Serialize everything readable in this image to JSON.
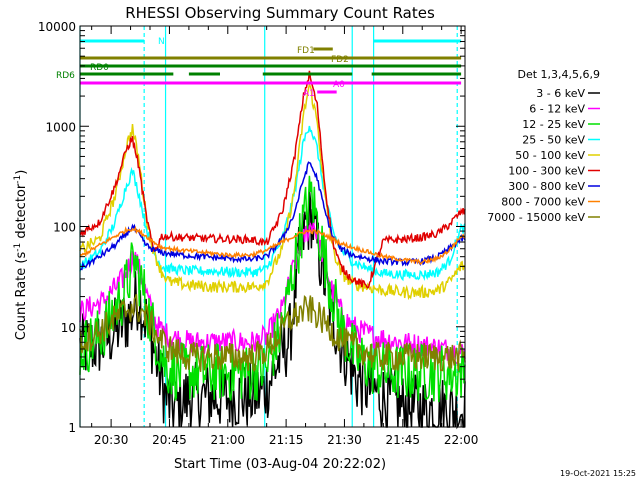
{
  "chart_data": {
    "type": "line",
    "title": "RHESSI Observing Summary Count Rates",
    "xlabel": "Start Time (03-Aug-04 20:22:02)",
    "ylabel_main": "Count Rate (s",
    "ylabel_sup1": "-1",
    "ylabel_mid": " detector",
    "ylabel_sup2": "-1",
    "ylabel_end": ")",
    "footer": "19-Oct-2021 15:25",
    "x_range_min": [
      22,
      121
    ],
    "y_range": [
      1,
      10000
    ],
    "y_scale": "log",
    "x_ticks": [
      {
        "label": "20:30",
        "min": 30
      },
      {
        "label": "20:45",
        "min": 45
      },
      {
        "label": "21:00",
        "min": 60
      },
      {
        "label": "21:15",
        "min": 75
      },
      {
        "label": "21:30",
        "min": 90
      },
      {
        "label": "21:45",
        "min": 105
      },
      {
        "label": "22:00",
        "min": 120
      }
    ],
    "y_ticks": [
      {
        "label": "1",
        "value": 1
      },
      {
        "label": "10",
        "value": 10
      },
      {
        "label": "100",
        "value": 100
      },
      {
        "label": "1000",
        "value": 1000
      },
      {
        "label": "10000",
        "value": 10000
      }
    ],
    "legend_title": "Det 1,3,4,5,6,9",
    "legend_position": "right",
    "series": [
      {
        "name": "3 - 6 keV",
        "color": "#000000",
        "baseline": 2.3,
        "gap": 1.0,
        "points": [
          [
            22,
            6
          ],
          [
            28,
            7
          ],
          [
            35,
            13
          ],
          [
            37,
            21
          ],
          [
            38,
            15
          ],
          [
            40,
            9
          ],
          [
            42,
            4
          ],
          [
            44,
            2
          ],
          [
            46,
            1.5
          ],
          [
            50,
            2
          ],
          [
            56,
            2
          ],
          [
            62,
            2
          ],
          [
            67,
            2
          ],
          [
            70,
            2.5
          ],
          [
            76,
            8
          ],
          [
            78,
            40
          ],
          [
            80,
            100
          ],
          [
            81.5,
            130
          ],
          [
            83,
            65
          ],
          [
            86,
            18
          ],
          [
            89,
            7
          ],
          [
            93,
            3
          ],
          [
            96,
            2.5
          ],
          [
            100,
            2
          ],
          [
            104,
            1.6
          ],
          [
            110,
            1.5
          ],
          [
            116,
            1.5
          ],
          [
            120,
            1.5
          ]
        ],
        "noise": 0.35
      },
      {
        "name": "6 - 12 keV",
        "color": "#ff00ff",
        "baseline": 7.5,
        "gap": 6.5,
        "points": [
          [
            22,
            14
          ],
          [
            28,
            18
          ],
          [
            33,
            30
          ],
          [
            36,
            52
          ],
          [
            38,
            30
          ],
          [
            40,
            16
          ],
          [
            42,
            10
          ],
          [
            45,
            8
          ],
          [
            50,
            7
          ],
          [
            56,
            7
          ],
          [
            62,
            7
          ],
          [
            67,
            7
          ],
          [
            70,
            8
          ],
          [
            74,
            15
          ],
          [
            77,
            40
          ],
          [
            80,
            85
          ],
          [
            82,
            110
          ],
          [
            84,
            60
          ],
          [
            87,
            22
          ],
          [
            90,
            12
          ],
          [
            94,
            9
          ],
          [
            98,
            8
          ],
          [
            104,
            7
          ],
          [
            110,
            6.5
          ],
          [
            116,
            6
          ],
          [
            120,
            5.5
          ]
        ],
        "noise": 0.12
      },
      {
        "name": "12 - 25 keV",
        "color": "#00e000",
        "baseline": 3.5,
        "gap": 2.5,
        "points": [
          [
            22,
            6
          ],
          [
            27,
            8
          ],
          [
            33,
            20
          ],
          [
            36,
            45
          ],
          [
            38,
            25
          ],
          [
            40,
            12
          ],
          [
            42,
            7
          ],
          [
            44,
            4
          ],
          [
            48,
            3.5
          ],
          [
            54,
            3.5
          ],
          [
            60,
            3.5
          ],
          [
            66,
            3.5
          ],
          [
            70,
            3.8
          ],
          [
            74,
            10
          ],
          [
            77,
            40
          ],
          [
            80,
            140
          ],
          [
            81.5,
            210
          ],
          [
            83,
            110
          ],
          [
            86,
            30
          ],
          [
            89,
            10
          ],
          [
            93,
            5
          ],
          [
            97,
            4
          ],
          [
            102,
            3.5
          ],
          [
            110,
            3.5
          ],
          [
            116,
            3.5
          ],
          [
            120,
            3.5
          ]
        ],
        "noise": 0.3
      },
      {
        "name": "25 - 50 keV",
        "color": "#00ffff",
        "baseline": 30,
        "gap": 30,
        "points": [
          [
            22,
            40
          ],
          [
            27,
            55
          ],
          [
            31,
            110
          ],
          [
            34,
            260
          ],
          [
            35.5,
            360
          ],
          [
            37,
            220
          ],
          [
            39,
            100
          ],
          [
            41,
            55
          ],
          [
            43,
            40
          ],
          [
            45,
            38
          ],
          [
            50,
            36
          ],
          [
            56,
            36
          ],
          [
            62,
            35
          ],
          [
            67,
            35
          ],
          [
            70,
            38
          ],
          [
            74,
            75
          ],
          [
            77,
            200
          ],
          [
            79.5,
            700
          ],
          [
            81,
            1050
          ],
          [
            83,
            600
          ],
          [
            85,
            200
          ],
          [
            87,
            90
          ],
          [
            89,
            60
          ],
          [
            92,
            45
          ],
          [
            96,
            38
          ],
          [
            100,
            34
          ],
          [
            106,
            33
          ],
          [
            110,
            33
          ],
          [
            114,
            35
          ],
          [
            117,
            45
          ],
          [
            120,
            95
          ]
        ],
        "noise": 0.05
      },
      {
        "name": "50 - 100 keV",
        "color": "#e0d000",
        "baseline": 20,
        "gap": 18,
        "points": [
          [
            22,
            58
          ],
          [
            27,
            75
          ],
          [
            31,
            200
          ],
          [
            34,
            650
          ],
          [
            35.5,
            950
          ],
          [
            37,
            500
          ],
          [
            39,
            130
          ],
          [
            41,
            55
          ],
          [
            43,
            35
          ],
          [
            45,
            28
          ],
          [
            50,
            26
          ],
          [
            56,
            25
          ],
          [
            62,
            25
          ],
          [
            67,
            25
          ],
          [
            70,
            28
          ],
          [
            74,
            60
          ],
          [
            77,
            210
          ],
          [
            79.5,
            1300
          ],
          [
            81,
            2600
          ],
          [
            83,
            1100
          ],
          [
            85,
            200
          ],
          [
            87,
            60
          ],
          [
            89,
            35
          ],
          [
            92,
            27
          ],
          [
            96,
            25
          ],
          [
            100,
            23
          ],
          [
            106,
            22
          ],
          [
            110,
            22
          ],
          [
            114,
            23
          ],
          [
            117,
            28
          ],
          [
            120,
            40
          ]
        ],
        "noise": 0.06
      },
      {
        "name": "100 - 300 keV",
        "color": "#e00000",
        "baseline": 75,
        "gap": 75,
        "points": [
          [
            22,
            85
          ],
          [
            27,
            110
          ],
          [
            31,
            250
          ],
          [
            34,
            600
          ],
          [
            35.5,
            750
          ],
          [
            37,
            420
          ],
          [
            39,
            130
          ],
          [
            41,
            55
          ],
          [
            43,
            80
          ],
          [
            48,
            78
          ],
          [
            54,
            76
          ],
          [
            60,
            75
          ],
          [
            66,
            74
          ],
          [
            70,
            68
          ],
          [
            74,
            140
          ],
          [
            77,
            450
          ],
          [
            79.5,
            2000
          ],
          [
            81,
            3300
          ],
          [
            83,
            1600
          ],
          [
            85,
            250
          ],
          [
            87,
            70
          ],
          [
            89,
            40
          ],
          [
            92,
            30
          ],
          [
            96,
            25
          ],
          [
            100,
            72
          ],
          [
            106,
            75
          ],
          [
            110,
            78
          ],
          [
            114,
            85
          ],
          [
            117,
            105
          ],
          [
            120,
            140
          ]
        ],
        "noise": 0.04
      },
      {
        "name": "300 - 800 keV",
        "color": "#0000e0",
        "baseline": 40,
        "gap": 40,
        "points": [
          [
            22,
            38
          ],
          [
            27,
            50
          ],
          [
            31,
            65
          ],
          [
            34,
            85
          ],
          [
            35.5,
            100
          ],
          [
            37,
            85
          ],
          [
            39,
            65
          ],
          [
            41,
            58
          ],
          [
            43,
            55
          ],
          [
            48,
            52
          ],
          [
            54,
            50
          ],
          [
            60,
            48
          ],
          [
            66,
            47
          ],
          [
            70,
            50
          ],
          [
            74,
            75
          ],
          [
            77,
            130
          ],
          [
            79.5,
            300
          ],
          [
            81,
            440
          ],
          [
            83,
            300
          ],
          [
            85,
            140
          ],
          [
            87,
            80
          ],
          [
            89,
            60
          ],
          [
            92,
            52
          ],
          [
            96,
            48
          ],
          [
            100,
            45
          ],
          [
            106,
            44
          ],
          [
            110,
            45
          ],
          [
            114,
            50
          ],
          [
            117,
            60
          ],
          [
            120,
            75
          ]
        ],
        "noise": 0.03
      },
      {
        "name": "800 - 7000 keV",
        "color": "#ff8000",
        "baseline": 50,
        "gap": 55,
        "points": [
          [
            22,
            50
          ],
          [
            27,
            65
          ],
          [
            31,
            80
          ],
          [
            34,
            92
          ],
          [
            35.5,
            95
          ],
          [
            37,
            90
          ],
          [
            39,
            80
          ],
          [
            41,
            70
          ],
          [
            43,
            62
          ],
          [
            48,
            58
          ],
          [
            54,
            55
          ],
          [
            60,
            52
          ],
          [
            66,
            52
          ],
          [
            70,
            58
          ],
          [
            74,
            70
          ],
          [
            77,
            80
          ],
          [
            79.5,
            88
          ],
          [
            81,
            90
          ],
          [
            83,
            88
          ],
          [
            85,
            82
          ],
          [
            87,
            75
          ],
          [
            89,
            68
          ],
          [
            92,
            62
          ],
          [
            96,
            56
          ],
          [
            100,
            50
          ],
          [
            106,
            46
          ],
          [
            110,
            44
          ],
          [
            114,
            48
          ],
          [
            117,
            58
          ],
          [
            120,
            80
          ]
        ],
        "noise": 0.02
      },
      {
        "name": "7000 - 15000 keV",
        "color": "#808000",
        "baseline": 5,
        "gap": 5,
        "points": [
          [
            22,
            7
          ],
          [
            27,
            9
          ],
          [
            31,
            12
          ],
          [
            34,
            15
          ],
          [
            36,
            16
          ],
          [
            38,
            14
          ],
          [
            40,
            11
          ],
          [
            42,
            8
          ],
          [
            45,
            6
          ],
          [
            50,
            5
          ],
          [
            56,
            5
          ],
          [
            62,
            5
          ],
          [
            67,
            5
          ],
          [
            70,
            6
          ],
          [
            73,
            8
          ],
          [
            76,
            12
          ],
          [
            79,
            14
          ],
          [
            81,
            15
          ],
          [
            83,
            13
          ],
          [
            85,
            11
          ],
          [
            87,
            9
          ],
          [
            90,
            7
          ],
          [
            94,
            6
          ],
          [
            98,
            5
          ],
          [
            104,
            5
          ],
          [
            110,
            5
          ],
          [
            116,
            5
          ],
          [
            120,
            5
          ]
        ],
        "noise": 0.15
      }
    ],
    "vertical_lines": [
      {
        "min": 22,
        "color": "#00ffff",
        "style": "solid"
      },
      {
        "min": 38.5,
        "color": "#00ffff",
        "style": "dashed"
      },
      {
        "min": 44,
        "color": "#00ffff",
        "style": "solid"
      },
      {
        "min": 69.5,
        "color": "#00ffff",
        "style": "solid"
      },
      {
        "min": 92,
        "color": "#00ffff",
        "style": "solid"
      },
      {
        "min": 97.5,
        "color": "#00ffff",
        "style": "solid"
      },
      {
        "min": 119,
        "color": "#00ffff",
        "style": "dashed"
      }
    ],
    "flag_bars": [
      {
        "label": "N",
        "color": "#00ffff",
        "segments": [
          [
            22,
            38.5
          ],
          [
            97.5,
            120
          ]
        ],
        "value_px": 0
      },
      {
        "label": "FD1",
        "color": "#808000",
        "segments": [
          [
            82,
            87
          ]
        ],
        "value_px": 0
      },
      {
        "label": "FD2",
        "color": "#808000",
        "segments": [
          [
            22,
            120
          ]
        ],
        "value_px": 0
      },
      {
        "label": "RD0",
        "color": "#008000",
        "segments": [
          [
            22,
            120
          ]
        ],
        "value_px": 0
      },
      {
        "label": "RD6",
        "color": "#008000",
        "segments": [
          [
            22,
            46
          ],
          [
            50,
            58
          ],
          [
            69,
            92
          ],
          [
            97,
            120
          ]
        ],
        "value_px": 0
      },
      {
        "label": "A0",
        "color": "#ff00ff",
        "segments": [
          [
            22,
            120
          ]
        ],
        "value_px": 0
      },
      {
        "label": "A1",
        "color": "#ff00ff",
        "segments": [
          [
            83,
            88
          ]
        ],
        "value_px": 0
      }
    ]
  }
}
